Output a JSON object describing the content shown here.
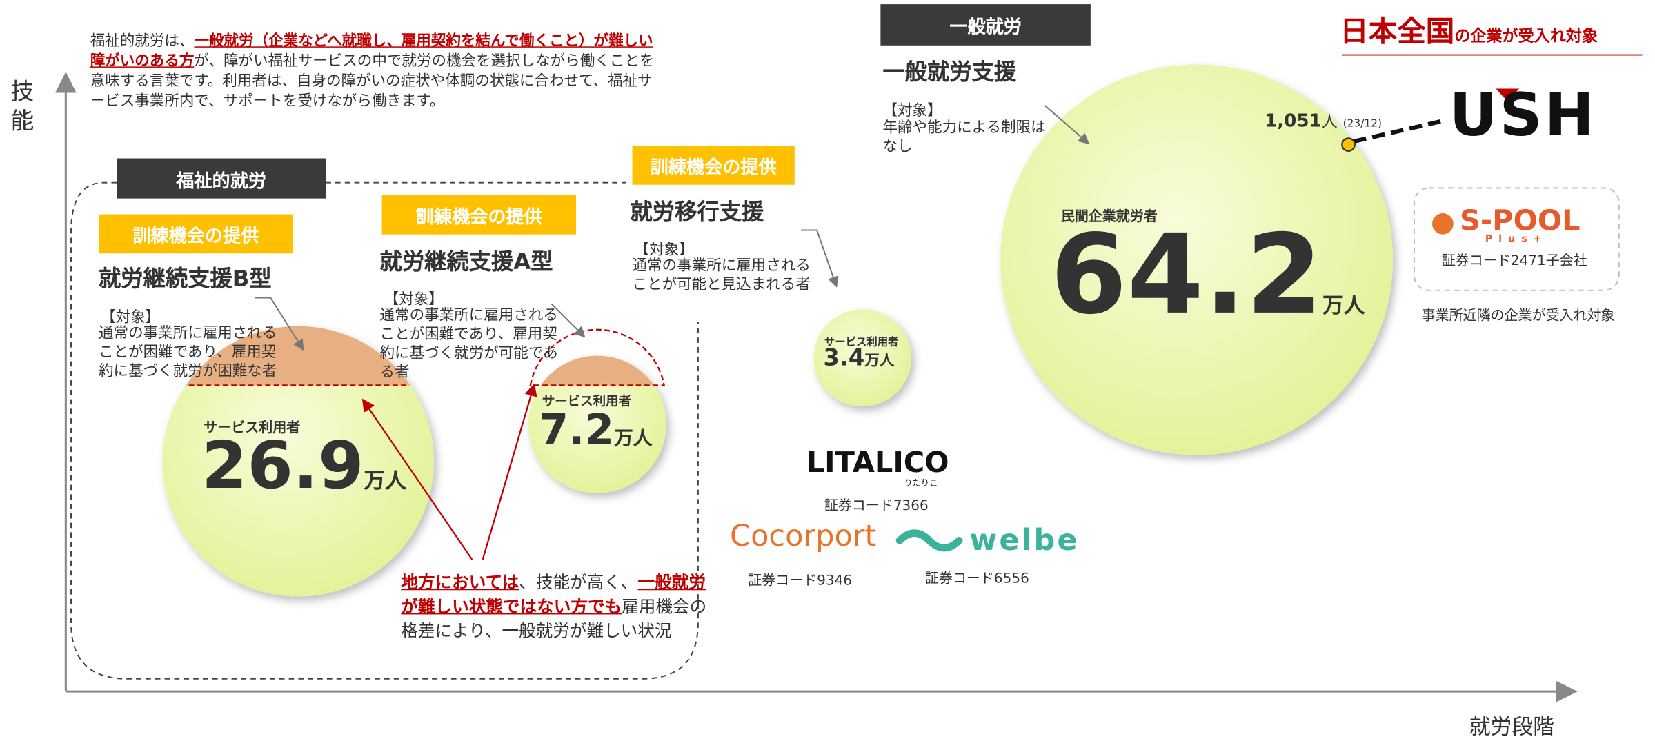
{
  "axes": {
    "y": "技能",
    "x": "就労段階"
  },
  "intro": {
    "plain1": "福祉的就労は、",
    "red": "一般就労（企業などへ就職し、雇用契約を結んで働くこと）が難しい障がいのある方",
    "plain2": "が、障がい福祉サービスの中で就労の機会を選択しながら働くことを意味する言葉です。利用者は、自身の障がいの症状や体調の状態に合わせて、福祉サービス事業所内で、サポートを受けながら働きます。"
  },
  "welfare_label": "福祉的就労",
  "programs": [
    {
      "badge": "訓練機会の提供",
      "title": "就労継続支援B型",
      "target": "【対象】",
      "desc": "通常の事業所に雇用されることが困難であり、雇用契約に基づく就労が困難な者",
      "bubble_label": "サービス利用者",
      "value": 26.9,
      "unit": "万人"
    },
    {
      "badge": "訓練機会の提供",
      "title": "就労継続支援A型",
      "target": "【対象】",
      "desc": "通常の事業所に雇用されることが困難であり、雇用契約に基づく就労が可能である者",
      "bubble_label": "サービス利用者",
      "value": 7.2,
      "unit": "万人"
    },
    {
      "badge": "訓練機会の提供",
      "title": "就労移行支援",
      "target": "【対象】",
      "desc": "通常の事業所に雇用されることが可能と見込まれる者",
      "bubble_label": "サービス利用者",
      "value": 3.4,
      "unit": "万人"
    },
    {
      "badge": "一般就労",
      "title": "一般就労支援",
      "target": "【対象】",
      "desc": "年齢や能力による制限はなし",
      "bubble_label": "民間企業就労者",
      "value": 64.2,
      "unit": "万人"
    }
  ],
  "note": {
    "red1": "地方においては",
    "plain1": "、技能が高く、",
    "red2": "一般就労が難しい状態ではない方でも",
    "plain2": "雇用機会の格差により、一般就労が難しい状況"
  },
  "right": {
    "heading_red": "日本全国",
    "heading_rest": "の企業が受入れ対象",
    "ush_count": "1,051",
    "ush_unit": "人",
    "ush_date": "(23/12)",
    "ush_logo": "USH",
    "spool_logo": "S-POOL",
    "spool_sub": "Plus+",
    "spool_code": "証券コード2471子会社",
    "spool_note": "事業所近隣の企業が受入れ対象"
  },
  "companies": [
    {
      "logo": "LITALICO",
      "sub": "りたりこ",
      "code": "証券コード7366"
    },
    {
      "logo": "Cocorport",
      "code": "証券コード9346"
    },
    {
      "logo": "welbe",
      "code": "証券コード6556"
    }
  ]
}
